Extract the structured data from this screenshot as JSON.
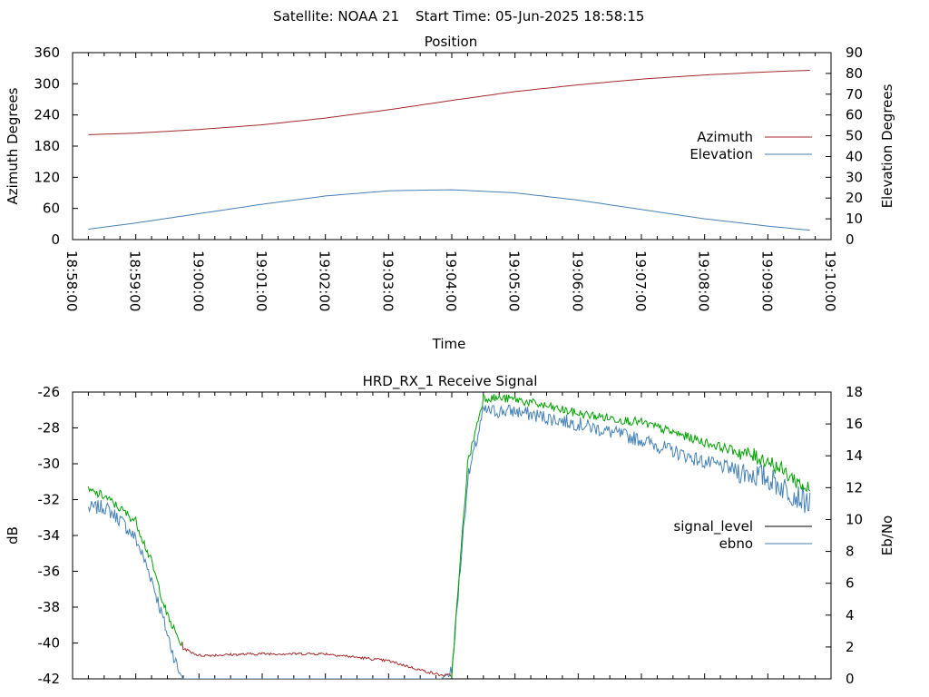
{
  "header": {
    "satellite": "Satellite: NOAA 21",
    "start_time": "Start Time: 05-Jun-2025 18:58:15"
  },
  "chart_data": [
    {
      "type": "line",
      "title": "Position",
      "xlabel": "Time",
      "ylabel": "Azimuth Degrees",
      "y2label": "Elevation Degrees",
      "xlim": [
        "18:58:00",
        "19:10:00"
      ],
      "ylim": [
        0,
        360
      ],
      "y2lim": [
        0,
        90
      ],
      "x_ticks": [
        "18:58:00",
        "18:59:00",
        "19:00:00",
        "19:01:00",
        "19:02:00",
        "19:03:00",
        "19:04:00",
        "19:05:00",
        "19:06:00",
        "19:07:00",
        "19:08:00",
        "19:09:00",
        "19:10:00"
      ],
      "y_ticks": [
        0,
        60,
        120,
        180,
        240,
        300,
        360
      ],
      "y2_ticks": [
        0,
        10,
        20,
        30,
        40,
        50,
        60,
        70,
        80,
        90
      ],
      "legend_position": "right",
      "series": [
        {
          "name": "Azimuth",
          "axis": "y",
          "color": "#a52a2a",
          "x": [
            "18:58:15",
            "18:59:00",
            "19:00:00",
            "19:01:00",
            "19:02:00",
            "19:03:00",
            "19:04:00",
            "19:05:00",
            "19:06:00",
            "19:07:00",
            "19:08:00",
            "19:09:00",
            "19:09:40"
          ],
          "y": [
            202,
            205,
            212,
            221,
            234,
            250,
            268,
            285,
            298,
            309,
            317,
            323,
            326
          ]
        },
        {
          "name": "Elevation",
          "axis": "y2",
          "color": "#4682b4",
          "x": [
            "18:58:15",
            "18:59:00",
            "19:00:00",
            "19:01:00",
            "19:02:00",
            "19:03:00",
            "19:04:00",
            "19:05:00",
            "19:06:00",
            "19:07:00",
            "19:08:00",
            "19:09:00",
            "19:09:40"
          ],
          "y": [
            5,
            8,
            12.5,
            17,
            21,
            23.5,
            24,
            22.5,
            19,
            14.5,
            10,
            6.5,
            4.5
          ]
        }
      ]
    },
    {
      "type": "line",
      "title": "HRD_RX_1 Receive Signal",
      "xlabel": "",
      "ylabel": "dB",
      "y2label": "Eb/No",
      "ylim": [
        -42,
        -26
      ],
      "y2lim": [
        0,
        18
      ],
      "y_ticks": [
        -42,
        -40,
        -38,
        -36,
        -34,
        -32,
        -30,
        -28,
        -26
      ],
      "y2_ticks": [
        0,
        2,
        4,
        6,
        8,
        10,
        12,
        14,
        16,
        18
      ],
      "legend_position": "right",
      "series": [
        {
          "name": "signal_level",
          "axis": "y",
          "color": "#000000",
          "segment_colors": [
            "#00a000",
            "#a52a2a",
            "#00a000"
          ],
          "x": [
            "18:58:15",
            "18:58:30",
            "18:58:45",
            "18:59:00",
            "18:59:15",
            "18:59:30",
            "18:59:45",
            "19:00:00",
            "19:01:00",
            "19:02:00",
            "19:03:00",
            "19:03:30",
            "19:03:50",
            "19:04:00",
            "19:04:15",
            "19:04:30",
            "19:05:00",
            "19:06:00",
            "19:07:00",
            "19:08:00",
            "19:09:00",
            "19:09:40"
          ],
          "y": [
            -31.5,
            -31.8,
            -32.5,
            -33.2,
            -35.5,
            -38.5,
            -40.3,
            -40.7,
            -40.6,
            -40.6,
            -41.0,
            -41.5,
            -41.8,
            -41.8,
            -30.0,
            -26.3,
            -26.4,
            -27.2,
            -27.7,
            -28.8,
            -29.8,
            -31.5
          ]
        },
        {
          "name": "ebno",
          "axis": "y2",
          "color": "#4682b4",
          "x": [
            "18:58:15",
            "18:58:30",
            "18:58:45",
            "18:59:00",
            "18:59:15",
            "18:59:30",
            "18:59:40",
            "18:59:45",
            "19:03:50",
            "19:04:00",
            "19:04:15",
            "19:04:30",
            "19:05:00",
            "19:06:00",
            "19:07:00",
            "19:08:00",
            "19:09:00",
            "19:09:40"
          ],
          "y": [
            10.7,
            10.8,
            10.0,
            8.8,
            6.3,
            2.8,
            0.6,
            0,
            0,
            0.5,
            12.5,
            16.8,
            16.8,
            16.0,
            15.0,
            13.6,
            12.6,
            11.0
          ]
        }
      ]
    }
  ]
}
